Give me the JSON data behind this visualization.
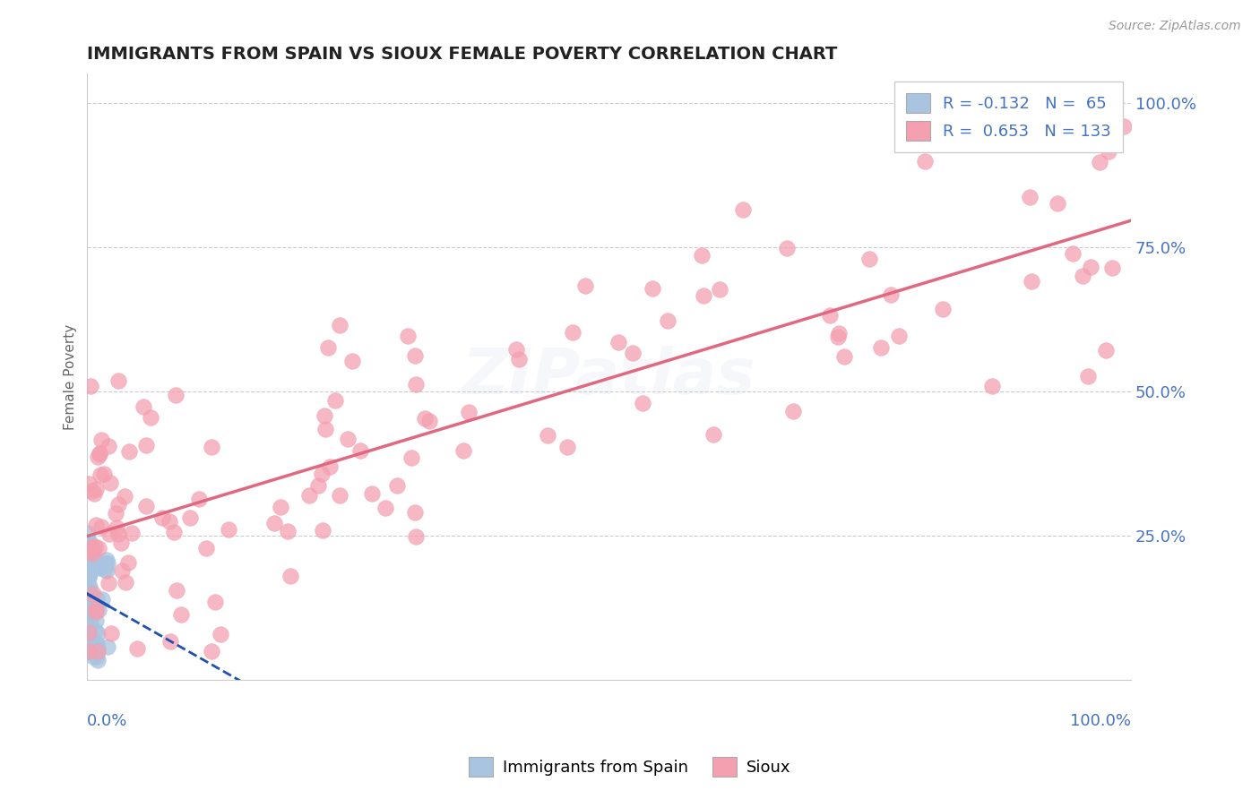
{
  "title": "IMMIGRANTS FROM SPAIN VS SIOUX FEMALE POVERTY CORRELATION CHART",
  "source_text": "Source: ZipAtlas.com",
  "ylabel": "Female Poverty",
  "legend": {
    "blue_label": "Immigrants from Spain",
    "pink_label": "Sioux",
    "blue_R": "-0.132",
    "blue_N": "65",
    "pink_R": "0.653",
    "pink_N": "133"
  },
  "blue_color": "#a8c4e0",
  "pink_color": "#f4a0b0",
  "blue_line_color": "#2050b0",
  "pink_line_color": "#e06880",
  "background_color": "#ffffff",
  "grid_color": "#cccccc",
  "title_color": "#222222",
  "axis_label_color": "#4472c4",
  "ylabel_color": "#666666",
  "watermark_color": "#c8d8e8",
  "watermark_alpha": 0.18
}
